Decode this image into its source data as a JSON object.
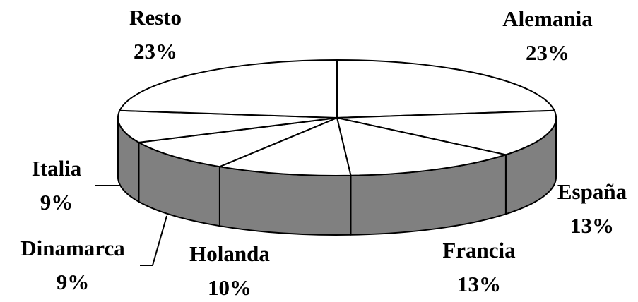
{
  "chart_data": {
    "type": "pie3d",
    "categories": [
      "Alemania",
      "España",
      "Francia",
      "Holanda",
      "Dinamarca",
      "Italia",
      "Resto"
    ],
    "values": [
      23,
      13,
      13,
      10,
      9,
      9,
      23
    ],
    "value_labels": [
      "23%",
      "13%",
      "13%",
      "10%",
      "9%",
      "9%",
      "23%"
    ],
    "colors": {
      "top": "#ffffff",
      "side": "#808080"
    }
  }
}
